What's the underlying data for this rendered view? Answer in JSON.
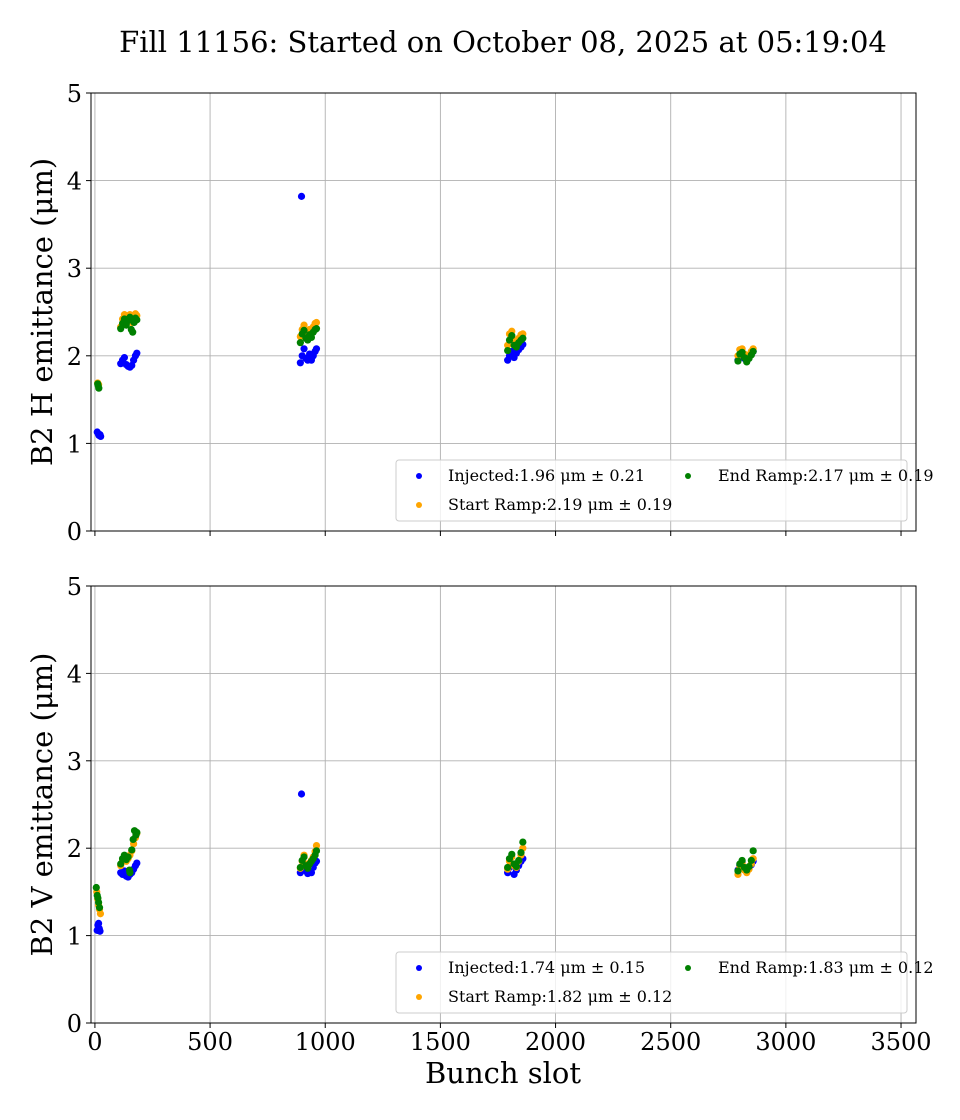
{
  "chart_data": [
    {
      "type": "scatter",
      "title": "Fill 11156: Started on October 08, 2025 at 05:19:04",
      "xlabel": "",
      "ylabel": "B2 H emittance (μm)",
      "xlim": [
        -17,
        3565
      ],
      "ylim": [
        0,
        5
      ],
      "xticks": [
        "0",
        "500",
        "1000",
        "1500",
        "2000",
        "2500",
        "3000",
        "3500"
      ],
      "xtick_values": [
        0,
        500,
        1000,
        1500,
        2000,
        2500,
        3000,
        3500
      ],
      "yticks": [
        "0",
        "1",
        "2",
        "3",
        "4",
        "5"
      ],
      "grid": true,
      "legend_position": "lower-right",
      "series": [
        {
          "name": "Injected",
          "legend": "Injected:1.96 μm ± 0.21",
          "color": "#0000ff",
          "points": [
            [
              10,
              1.13
            ],
            [
              14,
              1.11
            ],
            [
              18,
              1.09
            ],
            [
              22,
              1.1
            ],
            [
              25,
              1.08
            ],
            [
              112,
              1.91
            ],
            [
              120,
              1.95
            ],
            [
              128,
              1.98
            ],
            [
              136,
              1.9
            ],
            [
              144,
              1.88
            ],
            [
              152,
              1.87
            ],
            [
              160,
              1.89
            ],
            [
              168,
              1.95
            ],
            [
              176,
              2.0
            ],
            [
              182,
              2.03
            ],
            [
              897,
              3.82
            ],
            [
              892,
              1.92
            ],
            [
              900,
              2.0
            ],
            [
              908,
              2.08
            ],
            [
              916,
              1.97
            ],
            [
              924,
              1.95
            ],
            [
              932,
              2.02
            ],
            [
              940,
              1.95
            ],
            [
              948,
              2.0
            ],
            [
              956,
              2.05
            ],
            [
              962,
              2.08
            ],
            [
              1792,
              1.95
            ],
            [
              1800,
              2.0
            ],
            [
              1810,
              2.05
            ],
            [
              1820,
              1.98
            ],
            [
              1830,
              2.03
            ],
            [
              1840,
              2.07
            ],
            [
              1850,
              2.1
            ],
            [
              1858,
              2.13
            ],
            [
              2792,
              1.95
            ],
            [
              2800,
              2.0
            ],
            [
              2810,
              2.03
            ],
            [
              2820,
              1.97
            ],
            [
              2830,
              1.94
            ],
            [
              2840,
              1.98
            ],
            [
              2850,
              2.02
            ],
            [
              2858,
              2.05
            ]
          ]
        },
        {
          "name": "Start Ramp",
          "legend": "Start Ramp:2.19 μm ± 0.19",
          "color": "#ffa500",
          "points": [
            [
              12,
              1.69
            ],
            [
              16,
              1.67
            ],
            [
              112,
              2.33
            ],
            [
              120,
              2.42
            ],
            [
              128,
              2.47
            ],
            [
              136,
              2.4
            ],
            [
              144,
              2.44
            ],
            [
              152,
              2.47
            ],
            [
              160,
              2.38
            ],
            [
              168,
              2.45
            ],
            [
              176,
              2.48
            ],
            [
              182,
              2.46
            ],
            [
              892,
              2.22
            ],
            [
              900,
              2.3
            ],
            [
              908,
              2.35
            ],
            [
              916,
              2.27
            ],
            [
              924,
              2.25
            ],
            [
              932,
              2.3
            ],
            [
              940,
              2.28
            ],
            [
              948,
              2.33
            ],
            [
              956,
              2.37
            ],
            [
              962,
              2.38
            ],
            [
              1792,
              2.12
            ],
            [
              1800,
              2.25
            ],
            [
              1810,
              2.28
            ],
            [
              1820,
              2.18
            ],
            [
              1830,
              2.15
            ],
            [
              1840,
              2.2
            ],
            [
              1850,
              2.24
            ],
            [
              1858,
              2.25
            ],
            [
              2792,
              2.0
            ],
            [
              2800,
              2.07
            ],
            [
              2810,
              2.08
            ],
            [
              2820,
              2.02
            ],
            [
              2830,
              1.97
            ],
            [
              2840,
              2.01
            ],
            [
              2850,
              2.05
            ],
            [
              2858,
              2.08
            ]
          ]
        },
        {
          "name": "End Ramp",
          "legend": "End Ramp:2.17 μm ± 0.19",
          "color": "#008000",
          "points": [
            [
              12,
              1.68
            ],
            [
              14,
              1.66
            ],
            [
              17,
              1.63
            ],
            [
              112,
              2.31
            ],
            [
              120,
              2.37
            ],
            [
              128,
              2.42
            ],
            [
              136,
              2.35
            ],
            [
              144,
              2.4
            ],
            [
              152,
              2.44
            ],
            [
              158,
              2.3
            ],
            [
              164,
              2.27
            ],
            [
              170,
              2.38
            ],
            [
              176,
              2.43
            ],
            [
              182,
              2.41
            ],
            [
              892,
              2.15
            ],
            [
              900,
              2.25
            ],
            [
              908,
              2.29
            ],
            [
              916,
              2.2
            ],
            [
              924,
              2.18
            ],
            [
              932,
              2.24
            ],
            [
              940,
              2.21
            ],
            [
              948,
              2.27
            ],
            [
              956,
              2.3
            ],
            [
              962,
              2.31
            ],
            [
              1792,
              2.06
            ],
            [
              1800,
              2.18
            ],
            [
              1810,
              2.23
            ],
            [
              1820,
              2.12
            ],
            [
              1830,
              2.1
            ],
            [
              1840,
              2.15
            ],
            [
              1850,
              2.18
            ],
            [
              1858,
              2.2
            ],
            [
              2792,
              1.94
            ],
            [
              2800,
              2.02
            ],
            [
              2810,
              2.04
            ],
            [
              2820,
              1.98
            ],
            [
              2830,
              1.93
            ],
            [
              2840,
              1.97
            ],
            [
              2850,
              2.01
            ],
            [
              2858,
              2.05
            ]
          ]
        }
      ]
    },
    {
      "type": "scatter",
      "xlabel": "Bunch slot",
      "ylabel": "B2 V emittance (μm)",
      "xlim": [
        -17,
        3565
      ],
      "ylim": [
        0,
        5
      ],
      "xticks": [
        "0",
        "500",
        "1000",
        "1500",
        "2000",
        "2500",
        "3000",
        "3500"
      ],
      "xtick_values": [
        0,
        500,
        1000,
        1500,
        2000,
        2500,
        3000,
        3500
      ],
      "yticks": [
        "0",
        "1",
        "2",
        "3",
        "4",
        "5"
      ],
      "grid": true,
      "legend_position": "lower-right",
      "series": [
        {
          "name": "Injected",
          "legend": "Injected:1.74 μm ± 0.15",
          "color": "#0000ff",
          "points": [
            [
              10,
              1.06
            ],
            [
              13,
              1.12
            ],
            [
              16,
              1.14
            ],
            [
              19,
              1.08
            ],
            [
              22,
              1.05
            ],
            [
              112,
              1.72
            ],
            [
              120,
              1.7
            ],
            [
              128,
              1.74
            ],
            [
              136,
              1.68
            ],
            [
              144,
              1.67
            ],
            [
              152,
              1.7
            ],
            [
              160,
              1.72
            ],
            [
              168,
              1.76
            ],
            [
              176,
              1.8
            ],
            [
              182,
              1.83
            ],
            [
              897,
              2.62
            ],
            [
              892,
              1.72
            ],
            [
              900,
              1.75
            ],
            [
              908,
              1.8
            ],
            [
              916,
              1.74
            ],
            [
              924,
              1.71
            ],
            [
              932,
              1.76
            ],
            [
              940,
              1.72
            ],
            [
              948,
              1.78
            ],
            [
              956,
              1.83
            ],
            [
              962,
              1.85
            ],
            [
              1792,
              1.72
            ],
            [
              1800,
              1.78
            ],
            [
              1810,
              1.82
            ],
            [
              1820,
              1.7
            ],
            [
              1830,
              1.75
            ],
            [
              1840,
              1.8
            ],
            [
              1850,
              1.85
            ],
            [
              1858,
              1.88
            ],
            [
              2792,
              1.75
            ],
            [
              2800,
              1.8
            ],
            [
              2810,
              1.84
            ],
            [
              2820,
              1.76
            ],
            [
              2830,
              1.73
            ],
            [
              2840,
              1.77
            ],
            [
              2850,
              1.81
            ],
            [
              2858,
              1.85
            ]
          ]
        },
        {
          "name": "Start Ramp",
          "legend": "Start Ramp:1.82 μm ± 0.12",
          "color": "#ffa500",
          "points": [
            [
              8,
              1.5
            ],
            [
              12,
              1.42
            ],
            [
              16,
              1.35
            ],
            [
              20,
              1.3
            ],
            [
              24,
              1.25
            ],
            [
              112,
              1.8
            ],
            [
              120,
              1.86
            ],
            [
              128,
              1.9
            ],
            [
              136,
              1.85
            ],
            [
              144,
              1.88
            ],
            [
              152,
              1.92
            ],
            [
              160,
              1.97
            ],
            [
              168,
              2.05
            ],
            [
              176,
              2.12
            ],
            [
              182,
              2.17
            ],
            [
              892,
              1.77
            ],
            [
              900,
              1.85
            ],
            [
              908,
              1.92
            ],
            [
              916,
              1.82
            ],
            [
              924,
              1.78
            ],
            [
              932,
              1.83
            ],
            [
              940,
              1.86
            ],
            [
              948,
              1.9
            ],
            [
              956,
              1.96
            ],
            [
              962,
              2.03
            ],
            [
              1792,
              1.76
            ],
            [
              1800,
              1.85
            ],
            [
              1810,
              1.9
            ],
            [
              1820,
              1.8
            ],
            [
              1830,
              1.78
            ],
            [
              1840,
              1.85
            ],
            [
              1850,
              1.92
            ],
            [
              1858,
              2.0
            ],
            [
              2792,
              1.7
            ],
            [
              2800,
              1.78
            ],
            [
              2810,
              1.83
            ],
            [
              2820,
              1.75
            ],
            [
              2830,
              1.72
            ],
            [
              2840,
              1.76
            ],
            [
              2850,
              1.82
            ],
            [
              2858,
              1.88
            ]
          ]
        },
        {
          "name": "End Ramp",
          "legend": "End Ramp:1.83 μm ± 0.12",
          "color": "#008000",
          "points": [
            [
              6,
              1.55
            ],
            [
              10,
              1.46
            ],
            [
              13,
              1.43
            ],
            [
              16,
              1.38
            ],
            [
              20,
              1.32
            ],
            [
              112,
              1.82
            ],
            [
              120,
              1.88
            ],
            [
              128,
              1.92
            ],
            [
              136,
              1.87
            ],
            [
              144,
              1.9
            ],
            [
              150,
              1.75
            ],
            [
              152,
              1.72
            ],
            [
              160,
              1.98
            ],
            [
              166,
              2.1
            ],
            [
              172,
              2.2
            ],
            [
              178,
              2.15
            ],
            [
              182,
              2.18
            ],
            [
              892,
              1.78
            ],
            [
              900,
              1.86
            ],
            [
              908,
              1.9
            ],
            [
              916,
              1.8
            ],
            [
              924,
              1.77
            ],
            [
              932,
              1.82
            ],
            [
              940,
              1.85
            ],
            [
              948,
              1.88
            ],
            [
              956,
              1.92
            ],
            [
              962,
              1.97
            ],
            [
              1792,
              1.78
            ],
            [
              1800,
              1.88
            ],
            [
              1810,
              1.93
            ],
            [
              1820,
              1.82
            ],
            [
              1830,
              1.79
            ],
            [
              1840,
              1.86
            ],
            [
              1850,
              1.95
            ],
            [
              1858,
              2.07
            ],
            [
              2792,
              1.74
            ],
            [
              2800,
              1.82
            ],
            [
              2810,
              1.86
            ],
            [
              2820,
              1.78
            ],
            [
              2830,
              1.75
            ],
            [
              2840,
              1.79
            ],
            [
              2850,
              1.86
            ],
            [
              2858,
              1.97
            ]
          ]
        }
      ]
    }
  ]
}
